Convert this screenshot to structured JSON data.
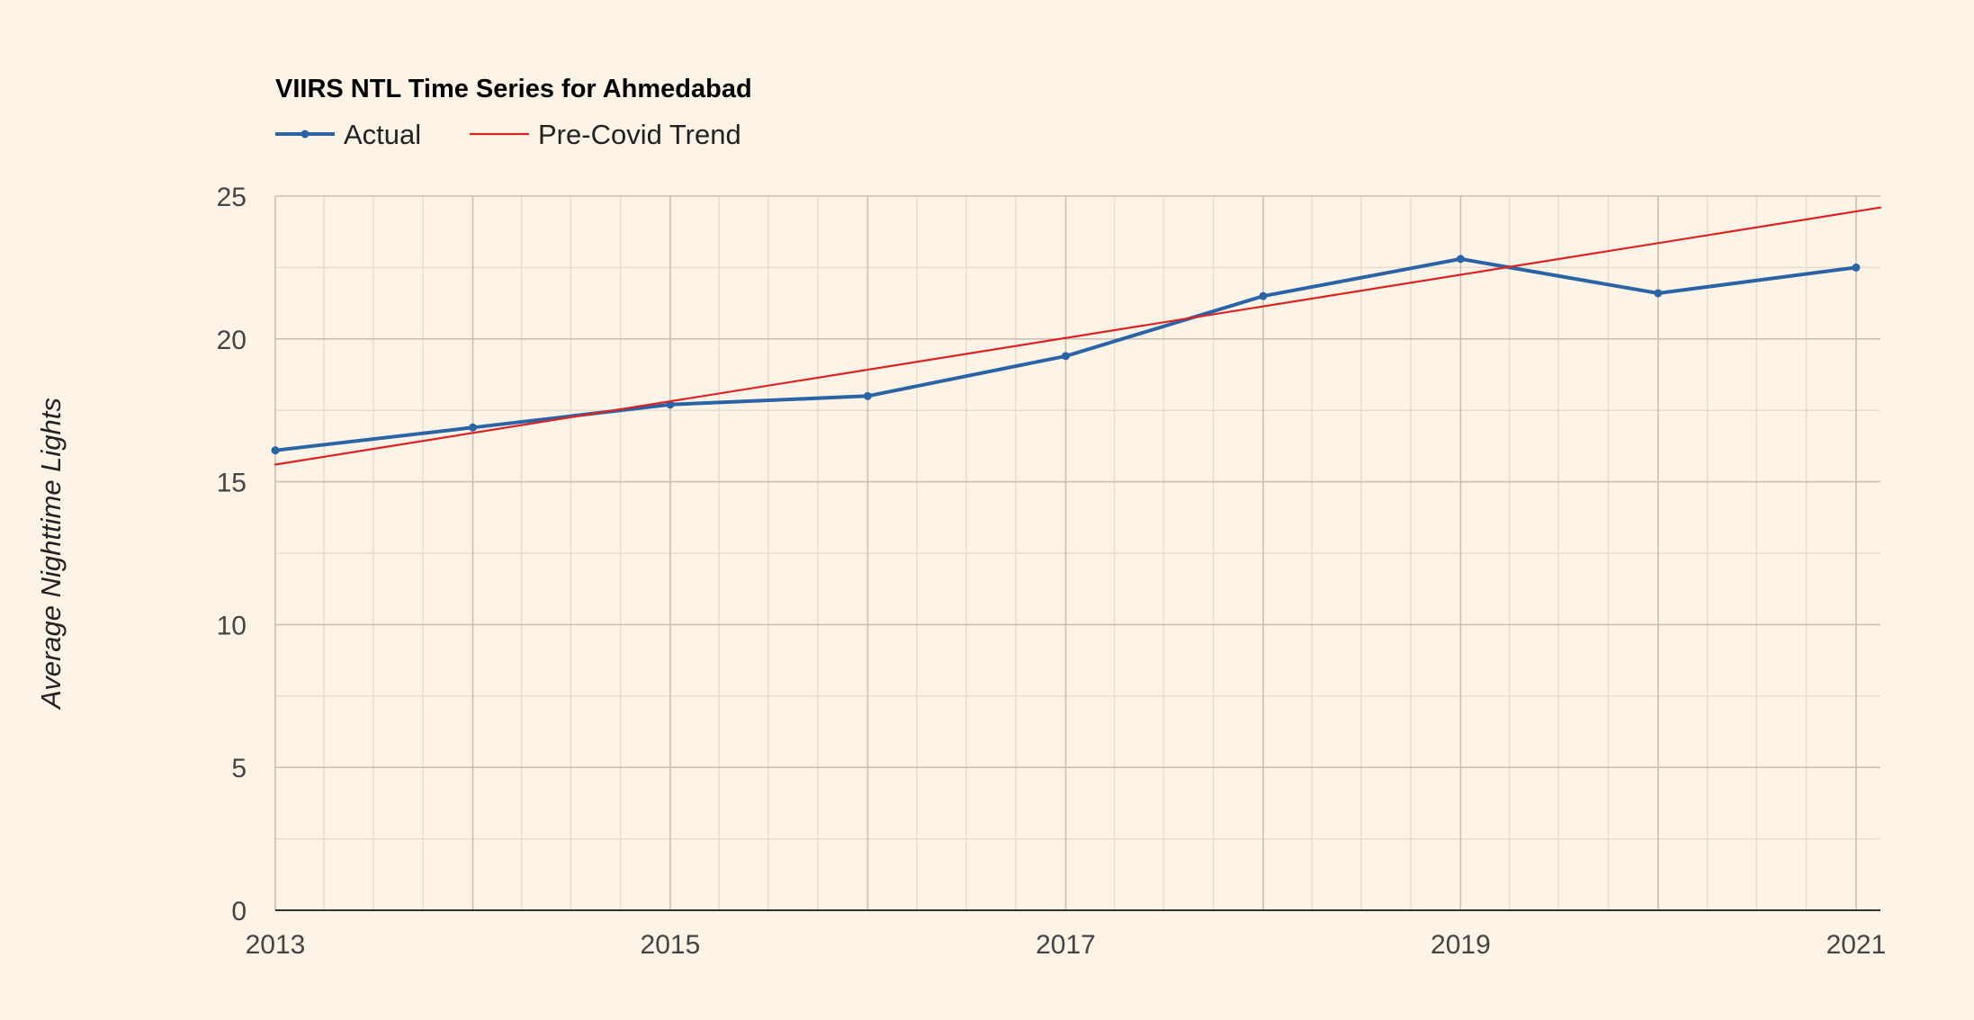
{
  "chart_data": {
    "type": "line",
    "title": "VIIRS NTL Time Series for Ahmedabad",
    "xlabel": "",
    "ylabel": "Average Nighttime Lights",
    "xlim": [
      "2013-01-01",
      "2021-02-15"
    ],
    "ylim": [
      0,
      25
    ],
    "x_ticks": [
      "2013",
      "2015",
      "2017",
      "2019",
      "2021"
    ],
    "y_ticks": [
      0,
      5,
      10,
      15,
      20,
      25
    ],
    "grid": true,
    "legend_position": "top-left",
    "series": [
      {
        "name": "Actual",
        "color": "#2b64a6",
        "markers": true,
        "x": [
          "2013-01-01",
          "2014-01-01",
          "2015-01-01",
          "2016-01-01",
          "2017-01-01",
          "2018-01-01",
          "2019-01-01",
          "2020-01-01",
          "2021-01-01"
        ],
        "y": [
          16.1,
          16.9,
          17.7,
          18.0,
          19.4,
          21.5,
          22.8,
          21.6,
          22.5
        ]
      },
      {
        "name": "Pre-Covid Trend",
        "color": "#dd2222",
        "markers": false,
        "x": [
          "2013-01-01",
          "2021-02-15"
        ],
        "y": [
          15.6,
          24.6
        ]
      }
    ]
  }
}
